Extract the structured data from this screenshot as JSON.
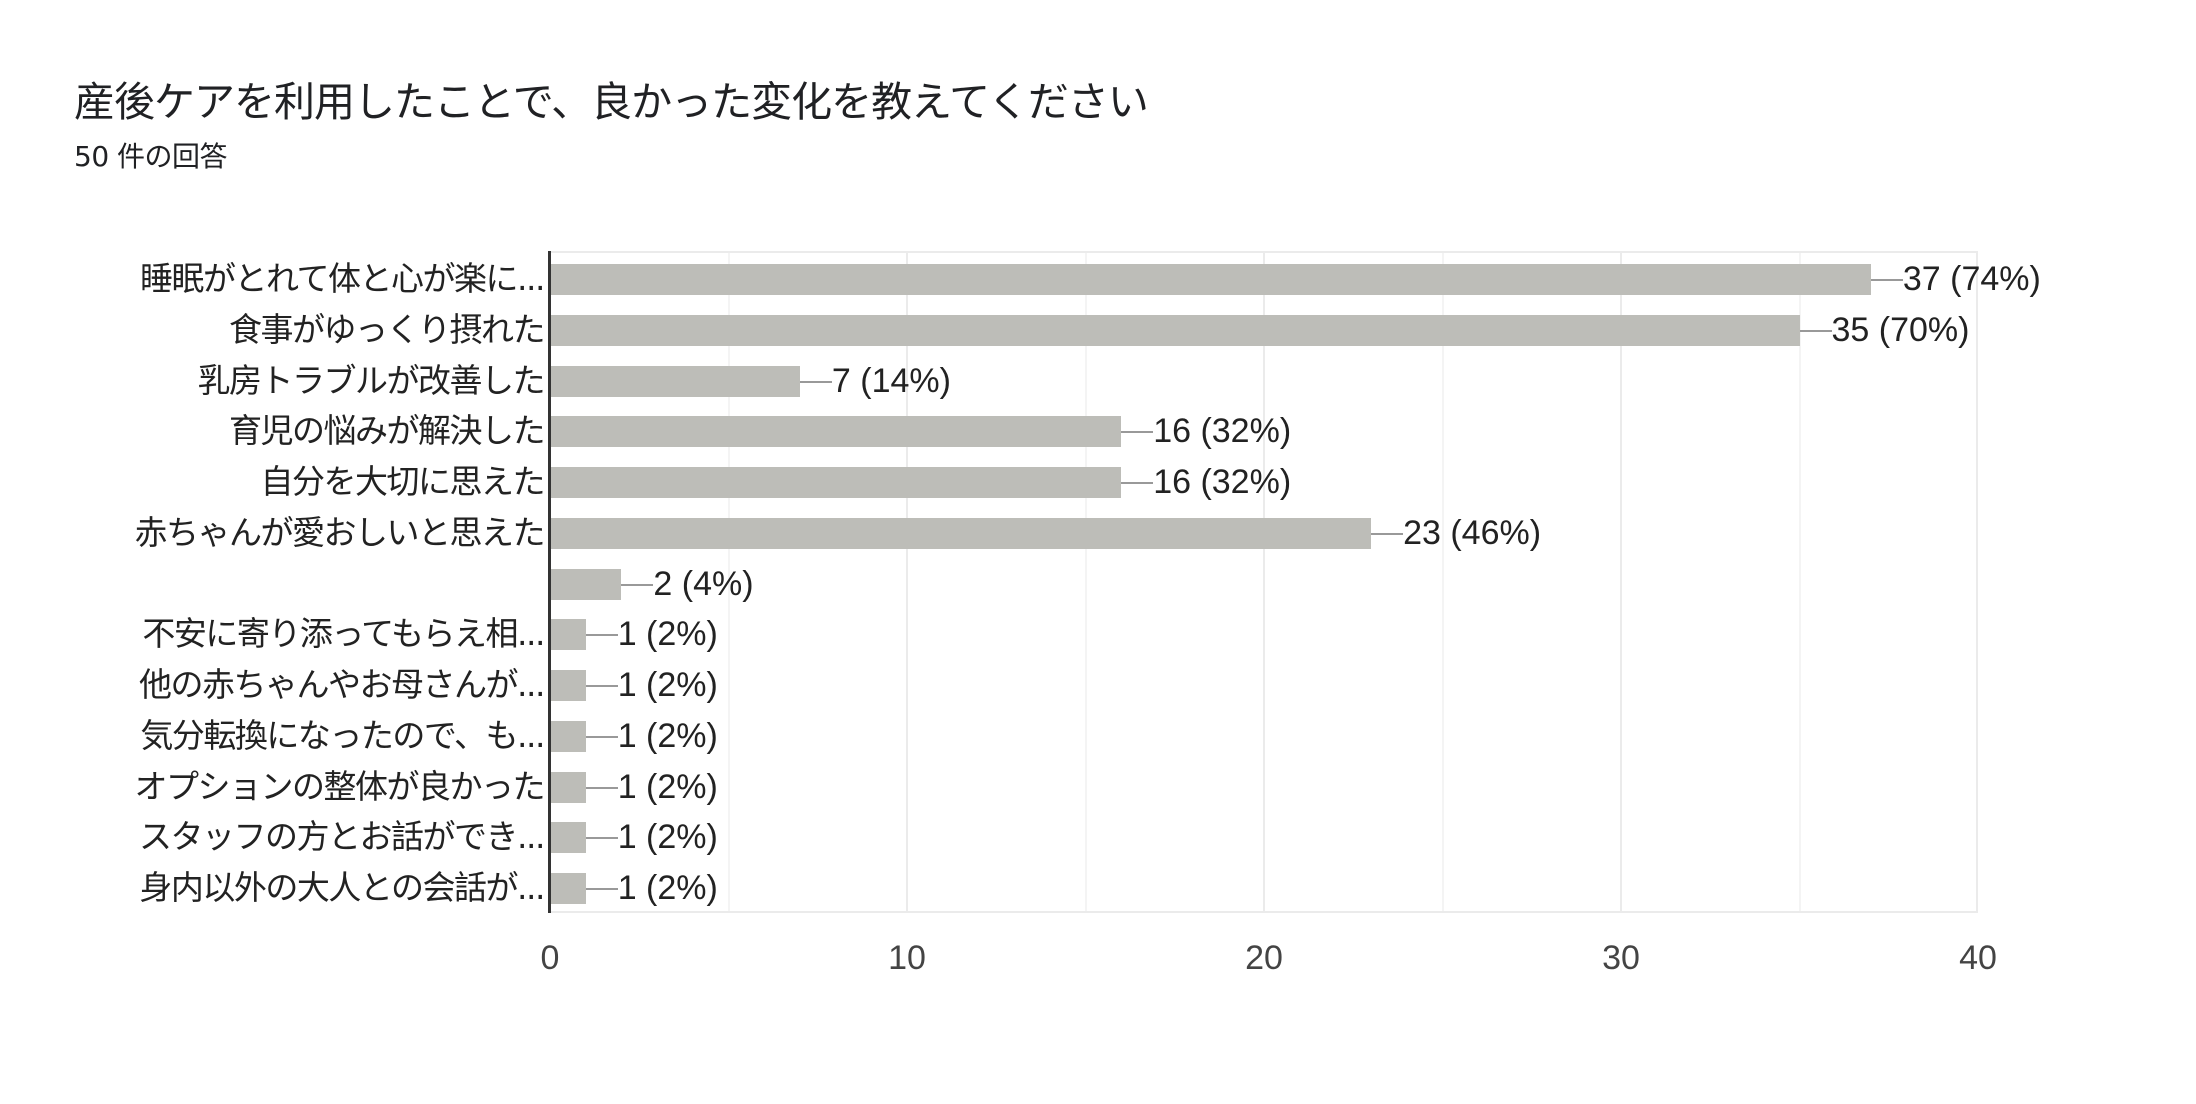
{
  "header": {
    "title": "産後ケアを利用したことで、良かった変化を教えてください",
    "response_count": "50 件の回答"
  },
  "colors": {
    "bar": "#bdbdb8",
    "connector": "#999999",
    "gridline": "#ebebeb",
    "axis": "#333333",
    "text": "#222222"
  },
  "chart_data": {
    "type": "bar",
    "orientation": "horizontal",
    "title": "産後ケアを利用したことで、良かった変化を教えてください",
    "subtitle": "50 件の回答",
    "xlabel": "",
    "ylabel": "",
    "xlim": [
      0,
      40
    ],
    "x_ticks": [
      "0",
      "10",
      "20",
      "30",
      "40"
    ],
    "grid": true,
    "legend": null,
    "categories": [
      "睡眠がとれて体と心が楽に...",
      "食事がゆっくり摂れた",
      "乳房トラブルが改善した",
      "育児の悩みが解決した",
      "自分を大切に思えた",
      "赤ちゃんが愛おしいと思えた",
      "",
      "不安に寄り添ってもらえ相...",
      "他の赤ちゃんやお母さんが...",
      "気分転換になったので、も...",
      "オプションの整体が良かった",
      "スタッフの方とお話ができ...",
      "身内以外の大人との会話が..."
    ],
    "values": [
      37,
      35,
      7,
      16,
      16,
      23,
      2,
      1,
      1,
      1,
      1,
      1,
      1
    ],
    "percentages": [
      74,
      70,
      14,
      32,
      32,
      46,
      4,
      2,
      2,
      2,
      2,
      2,
      2
    ],
    "data_labels": [
      "37 (74%)",
      "35 (70%)",
      "7 (14%)",
      "16 (32%)",
      "16 (32%)",
      "23 (46%)",
      "2 (4%)",
      "1 (2%)",
      "1 (2%)",
      "1 (2%)",
      "1 (2%)",
      "1 (2%)",
      "1 (2%)"
    ]
  }
}
